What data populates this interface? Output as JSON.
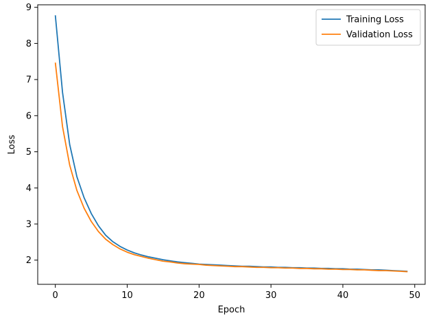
{
  "chart_data": {
    "type": "line",
    "title": "",
    "xlabel": "Epoch",
    "ylabel": "Loss",
    "xlim": [
      -2.45,
      51.45
    ],
    "ylim": [
      1.33,
      9.07
    ],
    "xticks": [
      0,
      10,
      20,
      30,
      40,
      50
    ],
    "yticks": [
      2,
      3,
      4,
      5,
      6,
      7,
      8,
      9
    ],
    "grid": false,
    "legend_position": "top-right",
    "x": [
      0,
      1,
      2,
      3,
      4,
      5,
      6,
      7,
      8,
      9,
      10,
      11,
      12,
      13,
      14,
      15,
      16,
      17,
      18,
      19,
      20,
      21,
      22,
      23,
      24,
      25,
      26,
      27,
      28,
      29,
      30,
      31,
      32,
      33,
      34,
      35,
      36,
      37,
      38,
      39,
      40,
      41,
      42,
      43,
      44,
      45,
      46,
      47,
      48,
      49
    ],
    "series": [
      {
        "name": "Training Loss",
        "color": "#1f77b4",
        "values": [
          8.78,
          6.65,
          5.2,
          4.31,
          3.73,
          3.29,
          2.95,
          2.69,
          2.51,
          2.38,
          2.28,
          2.2,
          2.14,
          2.09,
          2.05,
          2.01,
          1.98,
          1.95,
          1.93,
          1.91,
          1.89,
          1.88,
          1.87,
          1.86,
          1.85,
          1.84,
          1.83,
          1.83,
          1.82,
          1.81,
          1.81,
          1.8,
          1.8,
          1.79,
          1.79,
          1.78,
          1.78,
          1.77,
          1.77,
          1.76,
          1.76,
          1.75,
          1.75,
          1.74,
          1.73,
          1.73,
          1.72,
          1.71,
          1.7,
          1.69
        ]
      },
      {
        "name": "Validation Loss",
        "color": "#ff7f0e",
        "values": [
          7.47,
          5.7,
          4.63,
          3.93,
          3.44,
          3.07,
          2.79,
          2.58,
          2.43,
          2.31,
          2.22,
          2.15,
          2.1,
          2.05,
          2.01,
          1.97,
          1.95,
          1.92,
          1.9,
          1.89,
          1.88,
          1.86,
          1.85,
          1.84,
          1.83,
          1.82,
          1.82,
          1.81,
          1.8,
          1.8,
          1.79,
          1.79,
          1.78,
          1.78,
          1.77,
          1.77,
          1.76,
          1.76,
          1.75,
          1.75,
          1.74,
          1.74,
          1.73,
          1.73,
          1.72,
          1.71,
          1.71,
          1.7,
          1.69,
          1.68
        ]
      }
    ]
  }
}
